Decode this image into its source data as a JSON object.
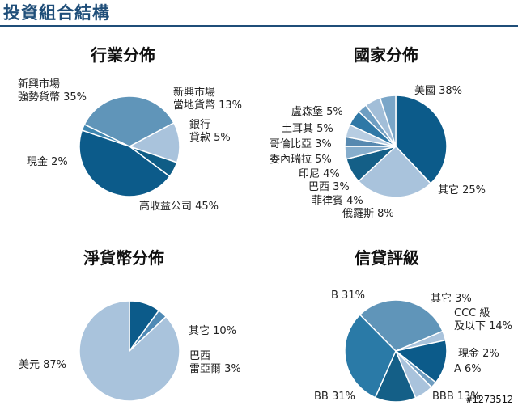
{
  "header": {
    "title": "投資組合結構"
  },
  "watermark": "#1273512",
  "chart_data": [
    {
      "type": "pie",
      "title": "行業分佈",
      "slices": [
        {
          "label": "新興市場\n當地貨幣",
          "value": 13,
          "color": "#a9c3dc"
        },
        {
          "label": "銀行\n貸款",
          "value": 5,
          "color": "#0f5d86"
        },
        {
          "label": "高收益公司",
          "value": 45,
          "color": "#0c5b8a"
        },
        {
          "label": "現金",
          "value": 2,
          "color": "#3f86b0"
        },
        {
          "label": "新興市場\n強勢貨幣",
          "value": 35,
          "color": "#6095b9"
        }
      ]
    },
    {
      "type": "pie",
      "title": "國家分佈",
      "slices": [
        {
          "label": "美國",
          "value": 38,
          "color": "#0c5b8a"
        },
        {
          "label": "其它",
          "value": 25,
          "color": "#a9c3dc"
        },
        {
          "label": "俄羅斯",
          "value": 8,
          "color": "#145f87"
        },
        {
          "label": "菲律賓",
          "value": 4,
          "color": "#86adcc"
        },
        {
          "label": "巴西",
          "value": 3,
          "color": "#5789b0"
        },
        {
          "label": "印尼",
          "value": 4,
          "color": "#b7cde2"
        },
        {
          "label": "委內瑞拉",
          "value": 5,
          "color": "#2f78a6"
        },
        {
          "label": "哥倫比亞",
          "value": 3,
          "color": "#6e9ec2"
        },
        {
          "label": "土耳其",
          "value": 5,
          "color": "#a2bed8"
        },
        {
          "label": "盧森堡",
          "value": 5,
          "color": "#7aa6c8"
        }
      ]
    },
    {
      "type": "pie",
      "title": "淨貨幣分佈",
      "slices": [
        {
          "label": "其它",
          "value": 10,
          "color": "#0c5b8a"
        },
        {
          "label": "巴西\n雷亞爾",
          "value": 3,
          "color": "#4f8ab5"
        },
        {
          "label": "美元",
          "value": 87,
          "color": "#a9c3dc"
        }
      ]
    },
    {
      "type": "pie",
      "title": "信貸評級",
      "slices": [
        {
          "label": "其它",
          "value": 3,
          "color": "#a9c3dc"
        },
        {
          "label": "CCC 級\n及以下",
          "value": 14,
          "color": "#0c5b8a"
        },
        {
          "label": "現金",
          "value": 2,
          "color": "#6f9dc0"
        },
        {
          "label": "A",
          "value": 6,
          "color": "#a9c3dc"
        },
        {
          "label": "BBB",
          "value": 13,
          "color": "#145f87"
        },
        {
          "label": "BB",
          "value": 31,
          "color": "#2a7aa7"
        },
        {
          "label": "B",
          "value": 31,
          "color": "#6095b9"
        }
      ]
    }
  ]
}
